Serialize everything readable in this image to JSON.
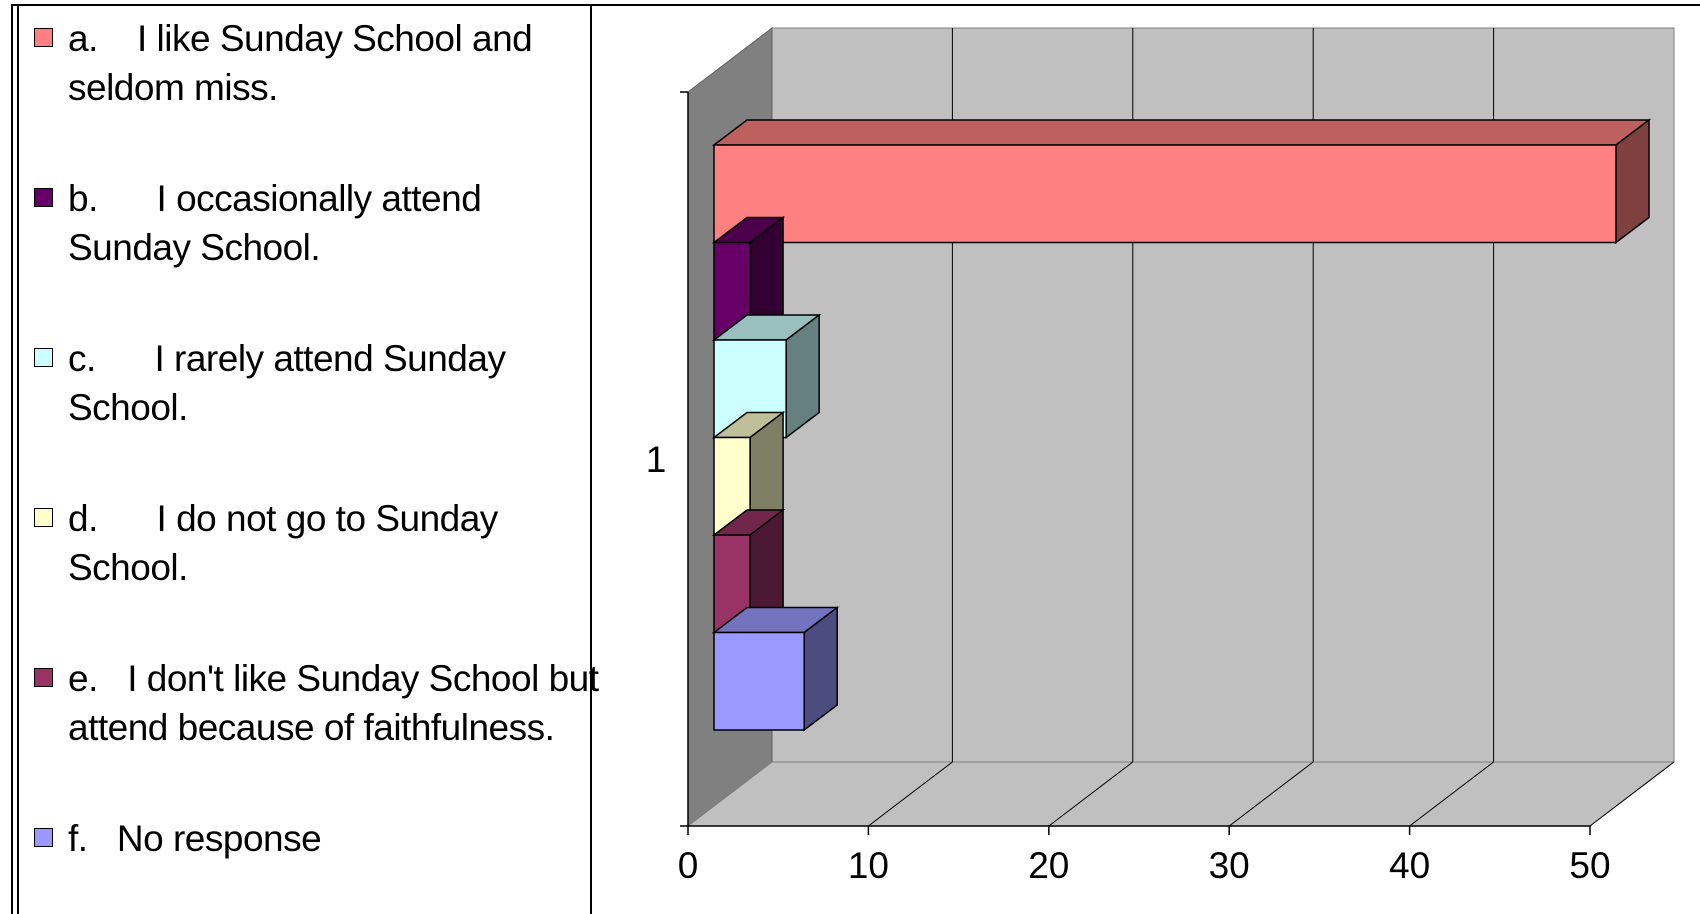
{
  "chart_data": {
    "type": "bar",
    "orientation": "horizontal",
    "three_d": true,
    "categories": [
      "1"
    ],
    "series": [
      {
        "name": "a.    I like Sunday School and seldom miss.",
        "values": [
          50
        ],
        "color": "#ff8080",
        "side": "#7f4040",
        "top": "#bf6060"
      },
      {
        "name": "b.      I occasionally attend Sunday School.",
        "values": [
          2
        ],
        "color": "#660066",
        "side": "#330033",
        "top": "#4c004c"
      },
      {
        "name": "c.      I rarely attend Sunday School.",
        "values": [
          4
        ],
        "color": "#ccffff",
        "side": "#667f7f",
        "top": "#99bfbf"
      },
      {
        "name": "d.      I do not go to Sunday School.",
        "values": [
          2
        ],
        "color": "#ffffcc",
        "side": "#7f7f66",
        "top": "#bfbf99"
      },
      {
        "name": "e.   I don't like Sunday School but attend because of faithfulness.",
        "values": [
          2
        ],
        "color": "#993366",
        "side": "#4c1933",
        "top": "#73264c"
      },
      {
        "name": "f.   No response",
        "values": [
          5
        ],
        "color": "#9999ff",
        "side": "#4c4c7f",
        "top": "#7373bf"
      }
    ],
    "xticks": [
      "0",
      "10",
      "20",
      "30",
      "40",
      "50"
    ],
    "xlim": [
      0,
      50
    ],
    "grid": true,
    "legend_position": "left",
    "background_color": "#c0c0c0"
  }
}
